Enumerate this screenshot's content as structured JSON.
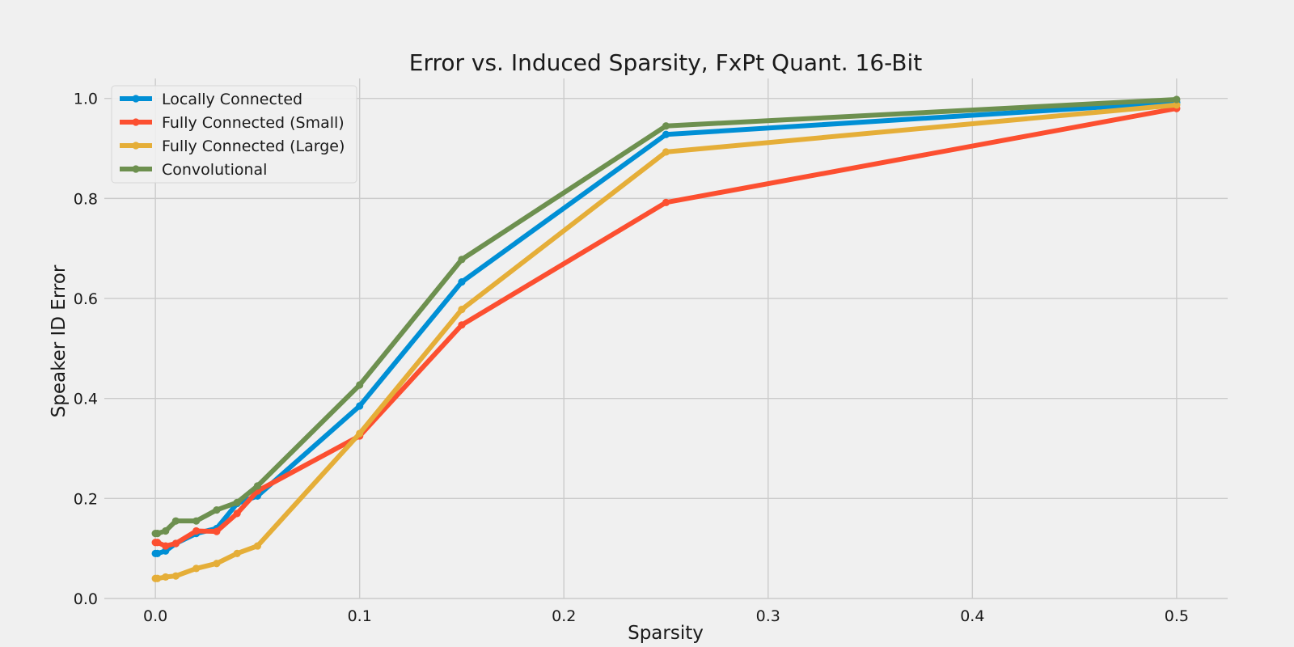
{
  "chart_data": {
    "type": "line",
    "title": "Error vs. Induced Sparsity, FxPt Quant. 16-Bit",
    "xlabel": "Sparsity",
    "ylabel": "Speaker ID Error",
    "xlim": [
      -0.025,
      0.525
    ],
    "ylim": [
      0.0,
      1.04
    ],
    "xticks": [
      0.0,
      0.1,
      0.2,
      0.3,
      0.4,
      0.5
    ],
    "xtick_labels": [
      "0.0",
      "0.1",
      "0.2",
      "0.3",
      "0.4",
      "0.5"
    ],
    "yticks": [
      0.0,
      0.2,
      0.4,
      0.6,
      0.8,
      1.0
    ],
    "ytick_labels": [
      "0.0",
      "0.2",
      "0.4",
      "0.6",
      "0.8",
      "1.0"
    ],
    "grid": true,
    "legend_position": "top-left",
    "x": [
      0.0,
      0.001,
      0.005,
      0.01,
      0.02,
      0.03,
      0.04,
      0.05,
      0.1,
      0.15,
      0.25,
      0.5
    ],
    "series": [
      {
        "name": "Locally Connected",
        "color": "#008fd5",
        "values": [
          0.09,
          0.09,
          0.095,
          0.11,
          0.13,
          0.14,
          0.19,
          0.205,
          0.385,
          0.633,
          0.928,
          0.992
        ]
      },
      {
        "name": "Fully Connected (Small)",
        "color": "#fc4f30",
        "values": [
          0.112,
          0.112,
          0.105,
          0.11,
          0.135,
          0.134,
          0.17,
          0.215,
          0.325,
          0.547,
          0.792,
          0.98
        ]
      },
      {
        "name": "Fully Connected (Large)",
        "color": "#e5ae38",
        "values": [
          0.04,
          0.04,
          0.043,
          0.045,
          0.06,
          0.07,
          0.09,
          0.105,
          0.33,
          0.578,
          0.893,
          0.987
        ]
      },
      {
        "name": "Convolutional",
        "color": "#6d904f",
        "values": [
          0.13,
          0.13,
          0.135,
          0.155,
          0.155,
          0.177,
          0.192,
          0.225,
          0.427,
          0.678,
          0.945,
          0.998
        ]
      }
    ]
  }
}
